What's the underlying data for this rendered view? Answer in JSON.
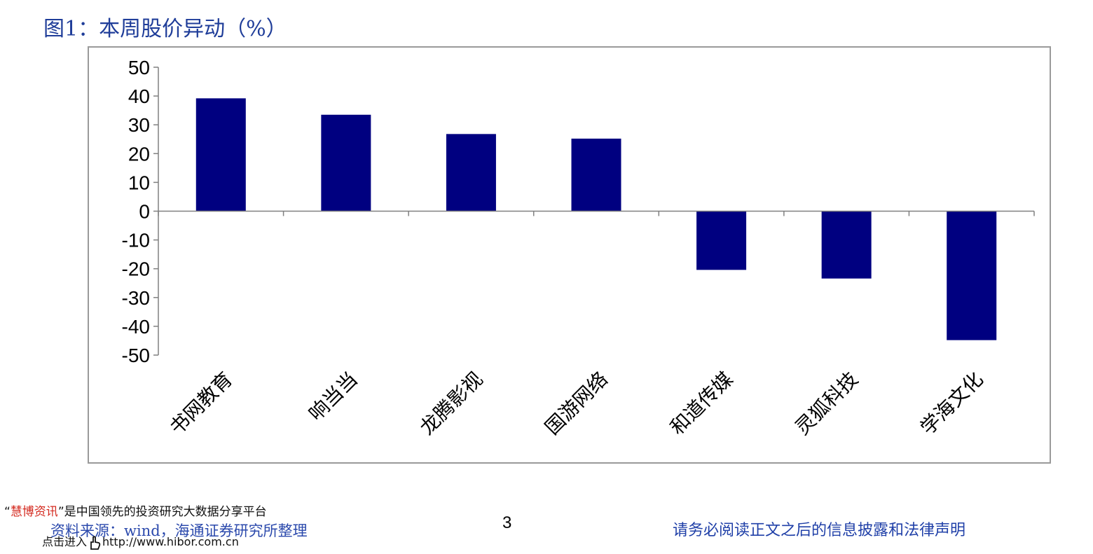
{
  "title": "图1：本周股价异动（%）",
  "chart_data": {
    "type": "bar",
    "categories": [
      "书网教育",
      "响当当",
      "龙腾影视",
      "国游网络",
      "和道传媒",
      "灵狐科技",
      "学海文化"
    ],
    "values": [
      39.2,
      33.5,
      26.8,
      25.2,
      -20.4,
      -23.4,
      -44.8
    ],
    "ylim": [
      -50,
      50
    ],
    "yticks": [
      "50",
      "40",
      "30",
      "20",
      "10",
      "0",
      "-10",
      "-20",
      "-30",
      "-40",
      "-50"
    ],
    "bar_color": "#000080",
    "grid": false,
    "legend": "none"
  },
  "footer": {
    "watermark_quote_open": "“",
    "watermark_brand": "慧博资讯",
    "watermark_rest": "”是中国领先的投资研究大数据分享平台",
    "watermark_link_prefix": "点击进入",
    "watermark_url": "http://www.hibor.com.cn",
    "hand_icon": "pointing-hand-icon",
    "source": "资料来源：wind，海通证券研究所整理",
    "page_number": "3",
    "disclaimer": "请务必阅读正文之后的信息披露和法律声明"
  }
}
